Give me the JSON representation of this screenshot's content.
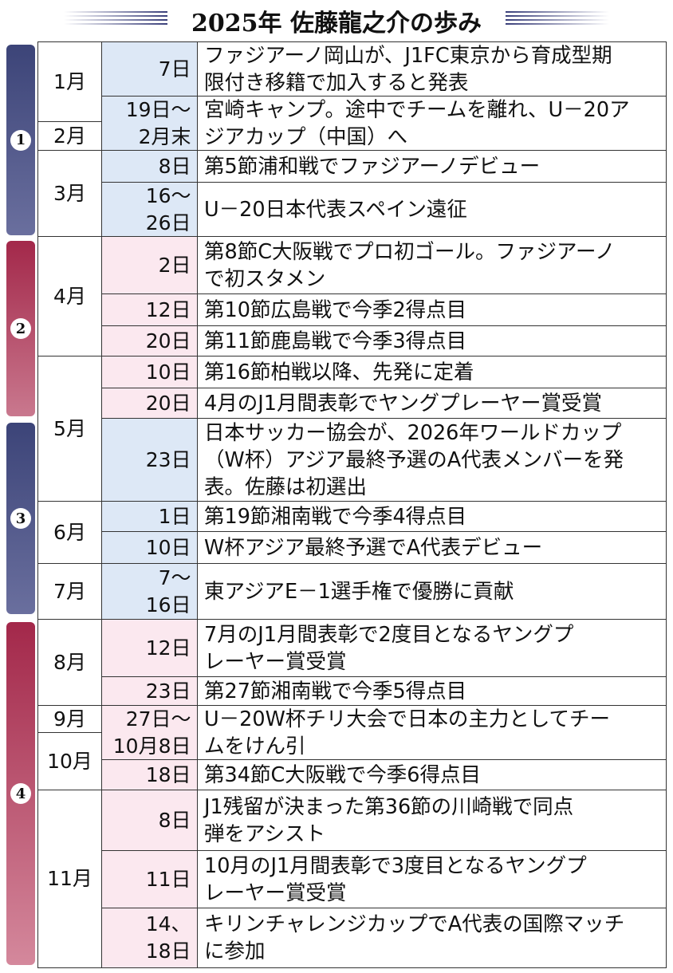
{
  "title": "2025年 佐藤龍之介の歩み",
  "phases": [
    {
      "label": "1"
    },
    {
      "label": "2"
    },
    {
      "label": "3"
    },
    {
      "label": "4"
    }
  ],
  "months": [
    {
      "label": "1月"
    },
    {
      "label": "2月"
    },
    {
      "label": "3月"
    },
    {
      "label": "4月"
    },
    {
      "label": "5月"
    },
    {
      "label": "6月"
    },
    {
      "label": "7月"
    },
    {
      "label": "8月"
    },
    {
      "label": "9月"
    },
    {
      "label": "10月"
    },
    {
      "label": "11月"
    }
  ],
  "rows": [
    {
      "day": "7日",
      "text": "ファジアーノ岡山が、J1FC東京から育成型期\n限付き移籍で加入すると発表"
    },
    {
      "day": "19日～\n2月末",
      "text": "宮崎キャンプ。途中でチームを離れ、U－20ア\nジアカップ（中国）へ"
    },
    {
      "day": "8日",
      "text": "第5節浦和戦でファジアーノデビュー"
    },
    {
      "day": "16～\n26日",
      "text": "U－20日本代表スペイン遠征"
    },
    {
      "day": "2日",
      "text": "第8節C大阪戦でプロ初ゴール。ファジアーノ\nで初スタメン"
    },
    {
      "day": "12日",
      "text": "第10節広島戦で今季2得点目"
    },
    {
      "day": "20日",
      "text": "第11節鹿島戦で今季3得点目"
    },
    {
      "day": "10日",
      "text": "第16節柏戦以降、先発に定着"
    },
    {
      "day": "20日",
      "text": "4月のJ1月間表彰でヤングプレーヤー賞受賞"
    },
    {
      "day": "23日",
      "text": "日本サッカー協会が、2026年ワールドカップ\n（W杯）アジア最終予選のA代表メンバーを発\n表。佐藤は初選出"
    },
    {
      "day": "1日",
      "text": "第19節湘南戦で今季4得点目"
    },
    {
      "day": "10日",
      "text": "W杯アジア最終予選でA代表デビュー"
    },
    {
      "day": "7～\n16日",
      "text": "東アジアE－1選手権で優勝に貢献"
    },
    {
      "day": "12日",
      "text": "7月のJ1月間表彰で2度目となるヤングプ\nレーヤー賞受賞"
    },
    {
      "day": "23日",
      "text": "第27節湘南戦で今季5得点目"
    },
    {
      "day": "27日～\n10月8日",
      "text": "U－20W杯チリ大会で日本の主力としてチー\nムをけん引"
    },
    {
      "day": "18日",
      "text": "第34節C大阪戦で今季6得点目"
    },
    {
      "day": "8日",
      "text": "J1残留が決まった第36節の川崎戦で同点\n弾をアシスト"
    },
    {
      "day": "11日",
      "text": "10月のJ1月間表彰で3度目となるヤングプ\nレーヤー賞受賞"
    },
    {
      "day": "14、\n18日",
      "text": "キリンチャレンジカップでA代表の国際マッチ\nに参加"
    }
  ]
}
